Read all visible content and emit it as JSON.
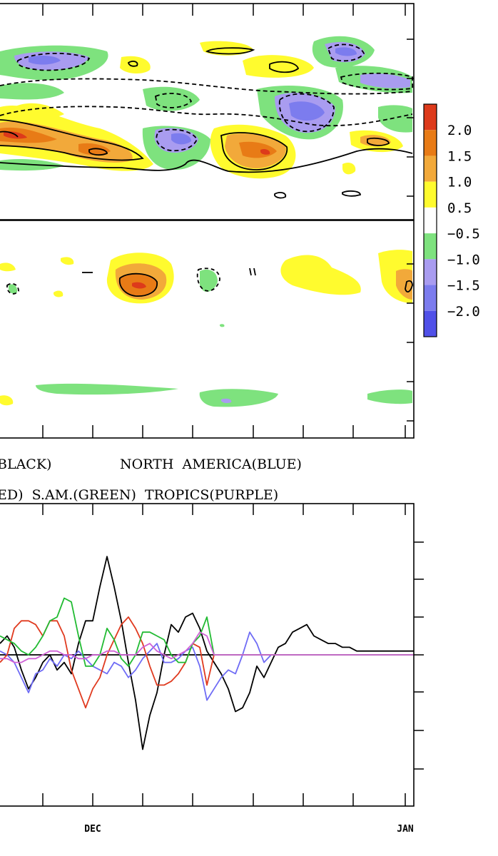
{
  "colorbar": {
    "labels": [
      "2.0",
      "1.5",
      "1.0",
      "0.5",
      "−0.5",
      "−1.0",
      "−1.5",
      "−2.0"
    ],
    "colors": [
      "#dd3a1b",
      "#e87b16",
      "#f2a93a",
      "#fffb2e",
      "#ffffff",
      "#7ee27e",
      "#a99cf0",
      "#7c7cee",
      "#5050e8"
    ]
  },
  "legend": {
    "line1_left": "BLACK)",
    "line1_right": "NORTH  AMERICA(BLUE)",
    "line2": "ED)  S.AM.(GREEN)  TROPICS(PURPLE)"
  },
  "chart_data": [
    {
      "type": "heatmap",
      "title": "",
      "note": "filled contour anomaly panels (upper: two stacked panels), values per colorbar"
    },
    {
      "type": "line",
      "title": "",
      "xlabel": "",
      "ylabel": "",
      "x_ticklabels": [
        "DEC",
        "JAN"
      ],
      "x": [
        0,
        1,
        2,
        3,
        4,
        5,
        6,
        7,
        8,
        9,
        10,
        11,
        12,
        13,
        14,
        15,
        16,
        17,
        18,
        19,
        20,
        21,
        22,
        23,
        24,
        25,
        26,
        27,
        28,
        29,
        30,
        31,
        32,
        33,
        34,
        35,
        36,
        37,
        38,
        39,
        40,
        41,
        42,
        43,
        44,
        45,
        46,
        47,
        48,
        49,
        50,
        51,
        52,
        53,
        54,
        55,
        56,
        57,
        58
      ],
      "ylim": [
        -4,
        4
      ],
      "zero_line": true,
      "series": [
        {
          "name": "BLACK",
          "color": "#000000",
          "values": [
            0.3,
            0.5,
            0.2,
            -0.4,
            -0.9,
            -0.6,
            -0.2,
            0.0,
            -0.4,
            -0.2,
            -0.5,
            0.3,
            0.9,
            0.9,
            1.8,
            2.6,
            1.8,
            0.9,
            -0.2,
            -1.2,
            -2.5,
            -1.6,
            -1.0,
            0.0,
            0.8,
            0.6,
            1.0,
            1.1,
            0.7,
            0.1,
            -0.2,
            -0.5,
            -0.9,
            -1.5,
            -1.4,
            -1.0,
            -0.3,
            -0.6,
            -0.2,
            0.2,
            0.3,
            0.6,
            0.7,
            0.8,
            0.5,
            0.4,
            0.3,
            0.3,
            0.2,
            0.2,
            0.1,
            0.1,
            0.1,
            0.1,
            0.1,
            0.1,
            0.1,
            0.1,
            0.1
          ]
        },
        {
          "name": "BLUE",
          "color": "#6f6cf5",
          "values": [
            0.1,
            0.0,
            -0.2,
            -0.6,
            -1.0,
            -0.5,
            -0.4,
            -0.1,
            -0.3,
            0.0,
            -0.1,
            0.1,
            -0.1,
            -0.3,
            -0.4,
            -0.5,
            -0.2,
            -0.3,
            -0.6,
            -0.4,
            -0.1,
            0.1,
            0.3,
            -0.2,
            -0.2,
            -0.1,
            0.1,
            0.2,
            -0.3,
            -1.2,
            -0.9,
            -0.6,
            -0.4,
            -0.5,
            0.0,
            0.6,
            0.3,
            -0.2,
            0.0,
            0.0,
            0.0,
            0.0,
            0.0,
            0.0,
            0.0,
            0.0,
            0.0,
            0.0,
            0.0,
            0.0,
            0.0,
            0.0,
            0.0,
            0.0,
            0.0,
            0.0,
            0.0,
            0.0,
            0.0
          ]
        },
        {
          "name": "RED",
          "color": "#e03a1f",
          "values": [
            -0.2,
            0.0,
            0.7,
            0.9,
            0.9,
            0.8,
            0.5,
            0.9,
            0.9,
            0.5,
            -0.4,
            -0.9,
            -1.4,
            -0.9,
            -0.6,
            0.0,
            0.4,
            0.8,
            1.0,
            0.7,
            0.3,
            -0.3,
            -0.8,
            -0.8,
            -0.7,
            -0.5,
            -0.2,
            0.3,
            0.2,
            -0.8,
            0.0,
            0.0,
            0.0,
            0.0,
            0.0,
            0.0,
            0.0,
            0.0,
            0.0,
            0.0,
            0.0,
            0.0,
            0.0,
            0.0,
            0.0,
            0.0,
            0.0,
            0.0,
            0.0,
            0.0,
            0.0,
            0.0,
            0.0,
            0.0,
            0.0,
            0.0,
            0.0,
            0.0,
            0.0
          ]
        },
        {
          "name": "GREEN",
          "color": "#22bb33",
          "values": [
            0.5,
            0.4,
            0.3,
            0.1,
            0.0,
            0.2,
            0.5,
            0.9,
            1.0,
            1.5,
            1.4,
            0.5,
            -0.3,
            -0.3,
            0.0,
            0.7,
            0.4,
            -0.1,
            -0.3,
            0.0,
            0.6,
            0.6,
            0.5,
            0.4,
            0.0,
            -0.2,
            -0.2,
            0.3,
            0.5,
            1.0,
            0.0,
            0.0,
            0.0,
            0.0,
            0.0,
            0.0,
            0.0,
            0.0,
            0.0,
            0.0,
            0.0,
            0.0,
            0.0,
            0.0,
            0.0,
            0.0,
            0.0,
            0.0,
            0.0,
            0.0,
            0.0,
            0.0,
            0.0,
            0.0,
            0.0,
            0.0,
            0.0,
            0.0,
            0.0
          ]
        },
        {
          "name": "PURPLE",
          "color": "#d062d6",
          "values": [
            -0.1,
            -0.1,
            -0.2,
            -0.2,
            -0.1,
            -0.1,
            0.0,
            0.1,
            0.1,
            0.0,
            0.0,
            -0.1,
            -0.1,
            0.0,
            0.0,
            0.1,
            0.1,
            0.0,
            0.0,
            0.0,
            0.2,
            0.3,
            0.1,
            0.0,
            -0.1,
            0.0,
            0.1,
            0.3,
            0.6,
            0.5,
            0.0,
            0.0,
            0.0,
            0.0,
            0.0,
            0.0,
            0.0,
            0.0,
            0.0,
            0.0,
            0.0,
            0.0,
            0.0,
            0.0,
            0.0,
            0.0,
            0.0,
            0.0,
            0.0,
            0.0,
            0.0,
            0.0,
            0.0,
            0.0,
            0.0,
            0.0,
            0.0,
            0.0,
            0.0
          ]
        }
      ]
    }
  ]
}
